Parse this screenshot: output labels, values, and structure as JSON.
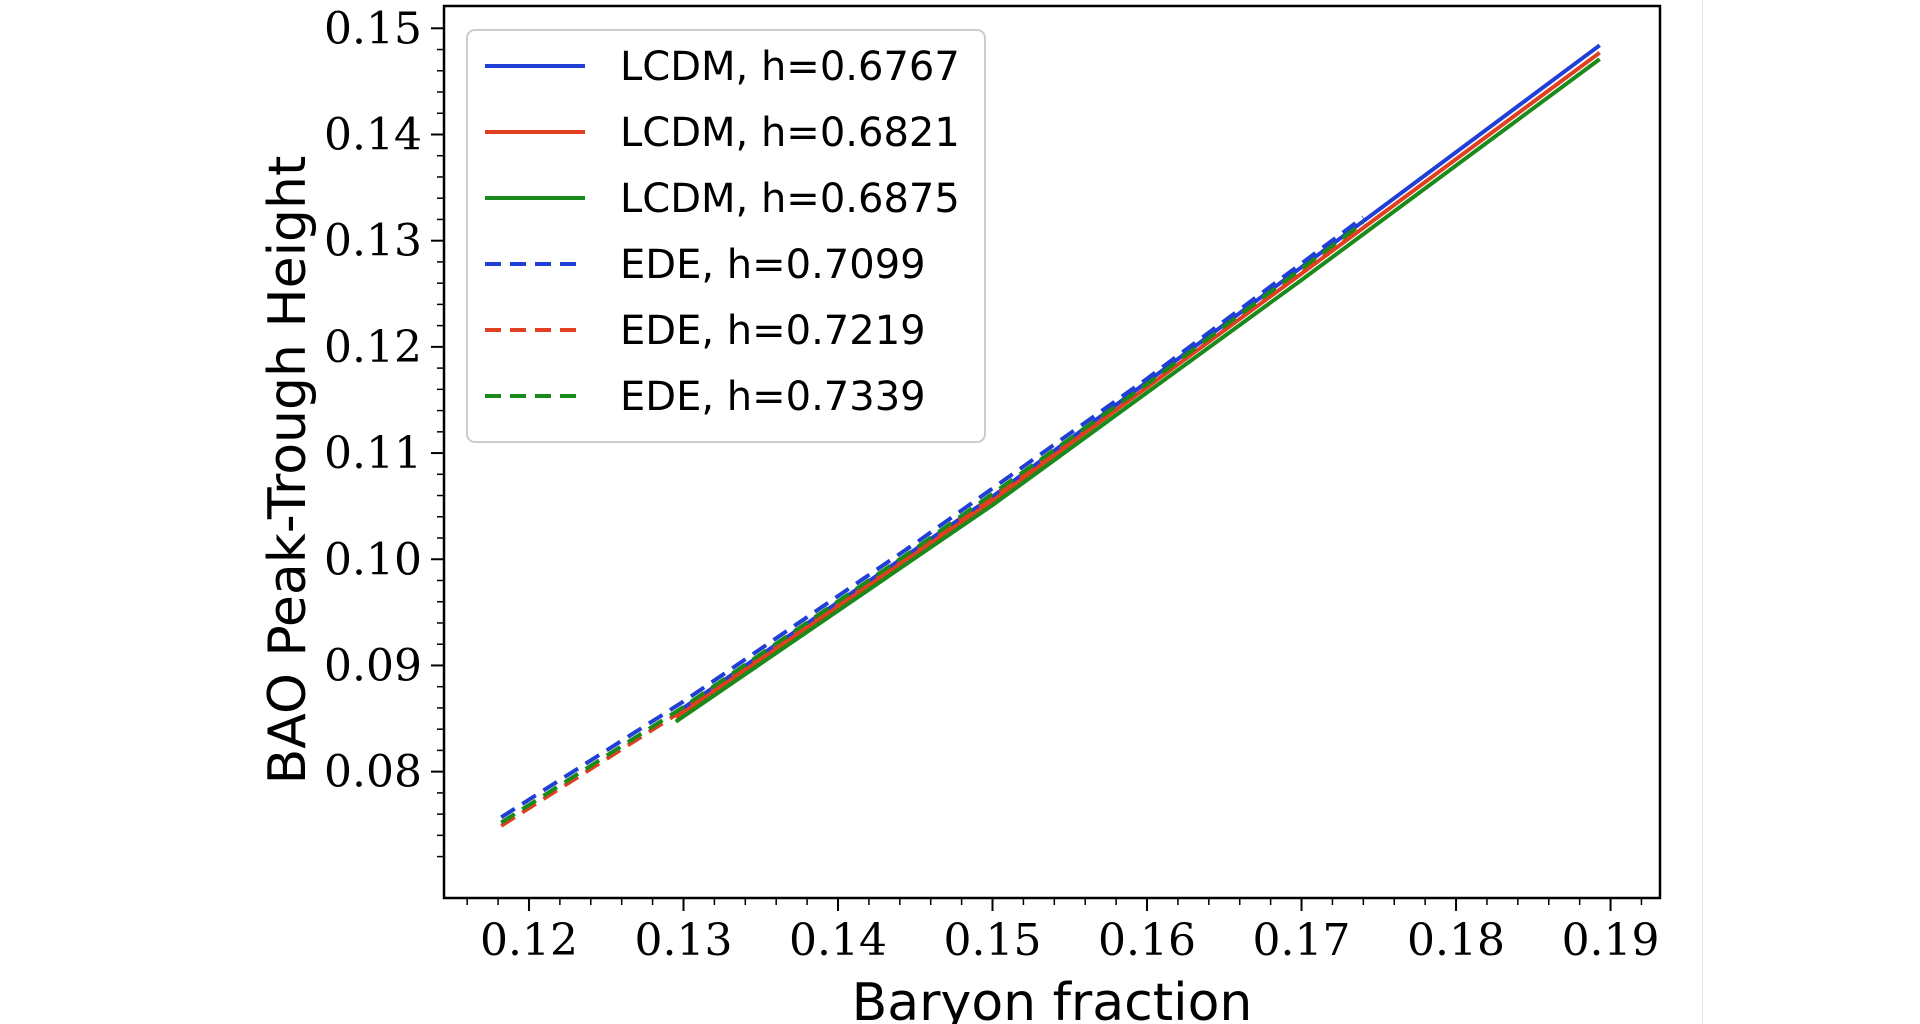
{
  "chart_data": {
    "type": "line",
    "title": "",
    "xlabel": "Baryon fraction",
    "ylabel": "BAO Peak-Trough Height",
    "xlim": [
      0.1145,
      0.1932
    ],
    "ylim": [
      0.0681,
      0.1521
    ],
    "x_ticks": [
      "0.12",
      "0.13",
      "0.14",
      "0.15",
      "0.16",
      "0.17",
      "0.18",
      "0.19"
    ],
    "y_ticks": [
      "0.08",
      "0.09",
      "0.10",
      "0.11",
      "0.12",
      "0.13",
      "0.14",
      "0.15"
    ],
    "grid": false,
    "legend_position": "top-left",
    "series": [
      {
        "name": "LCDM, h=0.6767",
        "color": "#1f3fd6",
        "style": "solid",
        "x": [
          0.1295,
          0.15,
          0.17,
          0.1893
        ],
        "y": [
          0.0855,
          0.1059,
          0.1275,
          0.1484
        ]
      },
      {
        "name": "LCDM, h=0.6821",
        "color": "#e0401f",
        "style": "solid",
        "x": [
          0.1295,
          0.15,
          0.17,
          0.1893
        ],
        "y": [
          0.0851,
          0.1055,
          0.1269,
          0.1477
        ]
      },
      {
        "name": "LCDM, h=0.6875",
        "color": "#1a8a1a",
        "style": "solid",
        "x": [
          0.1295,
          0.15,
          0.17,
          0.1893
        ],
        "y": [
          0.0847,
          0.1051,
          0.1263,
          0.1471
        ]
      },
      {
        "name": "EDE, h=0.7099",
        "color": "#1f3fd6",
        "style": "dashed",
        "x": [
          0.1182,
          0.13,
          0.145,
          0.16,
          0.174
        ],
        "y": [
          0.0757,
          0.0866,
          0.1015,
          0.117,
          0.1322
        ]
      },
      {
        "name": "EDE, h=0.7219",
        "color": "#e0401f",
        "style": "dashed",
        "x": [
          0.1182,
          0.13,
          0.145,
          0.16,
          0.174
        ],
        "y": [
          0.0749,
          0.0858,
          0.1007,
          0.1162,
          0.1313
        ]
      },
      {
        "name": "EDE, h=0.7339",
        "color": "#1a8a1a",
        "style": "dashed",
        "x": [
          0.1182,
          0.13,
          0.145,
          0.16,
          0.174
        ],
        "y": [
          0.0752,
          0.0861,
          0.101,
          0.1165,
          0.1317
        ]
      }
    ]
  }
}
